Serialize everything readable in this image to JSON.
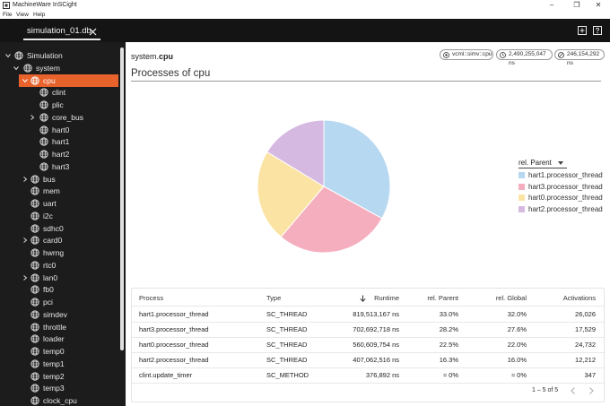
{
  "window": {
    "title": "MachineWare InSCight",
    "menu": [
      "File",
      "View",
      "Help"
    ],
    "controls": {
      "minimize": "–",
      "maximize": "❐",
      "close": "✕"
    }
  },
  "tabs": [
    {
      "label": "simulation_01.db",
      "active": true
    }
  ],
  "toolbar": {
    "icons": [
      "new-window-icon",
      "help-icon"
    ]
  },
  "sidebar": {
    "items": [
      {
        "label": "Simulation",
        "depth": 0,
        "expandable": true,
        "expanded": true
      },
      {
        "label": "system",
        "depth": 1,
        "expandable": true,
        "expanded": true
      },
      {
        "label": "cpu",
        "depth": 2,
        "expandable": true,
        "expanded": true,
        "selected": true
      },
      {
        "label": "clint",
        "depth": 3,
        "expandable": false
      },
      {
        "label": "plic",
        "depth": 3,
        "expandable": false
      },
      {
        "label": "core_bus",
        "depth": 3,
        "expandable": true,
        "expanded": false
      },
      {
        "label": "hart0",
        "depth": 3,
        "expandable": false
      },
      {
        "label": "hart1",
        "depth": 3,
        "expandable": false
      },
      {
        "label": "hart2",
        "depth": 3,
        "expandable": false
      },
      {
        "label": "hart3",
        "depth": 3,
        "expandable": false
      },
      {
        "label": "bus",
        "depth": 2,
        "expandable": true,
        "expanded": false
      },
      {
        "label": "mem",
        "depth": 2,
        "expandable": false
      },
      {
        "label": "uart",
        "depth": 2,
        "expandable": false
      },
      {
        "label": "i2c",
        "depth": 2,
        "expandable": false
      },
      {
        "label": "sdhc0",
        "depth": 2,
        "expandable": false
      },
      {
        "label": "card0",
        "depth": 2,
        "expandable": true,
        "expanded": false
      },
      {
        "label": "hwrng",
        "depth": 2,
        "expandable": false
      },
      {
        "label": "rtc0",
        "depth": 2,
        "expandable": false
      },
      {
        "label": "lan0",
        "depth": 2,
        "expandable": true,
        "expanded": false
      },
      {
        "label": "fb0",
        "depth": 2,
        "expandable": false
      },
      {
        "label": "pci",
        "depth": 2,
        "expandable": false
      },
      {
        "label": "simdev",
        "depth": 2,
        "expandable": false
      },
      {
        "label": "throttle",
        "depth": 2,
        "expandable": false
      },
      {
        "label": "loader",
        "depth": 2,
        "expandable": false
      },
      {
        "label": "temp0",
        "depth": 2,
        "expandable": false
      },
      {
        "label": "temp1",
        "depth": 2,
        "expandable": false
      },
      {
        "label": "temp2",
        "depth": 2,
        "expandable": false
      },
      {
        "label": "temp3",
        "depth": 2,
        "expandable": false
      },
      {
        "label": "clock_cpu",
        "depth": 2,
        "expandable": false
      }
    ]
  },
  "header": {
    "breadcrumb_prefix": "system.",
    "breadcrumb_current": "cpu",
    "chips": [
      {
        "icon": "chip-target-icon",
        "label": "vcml::simv::cpu"
      },
      {
        "icon": "clock-icon",
        "label": "2,490,255,047 ns"
      },
      {
        "icon": "timer-icon",
        "label": "246,154,292 ns"
      }
    ]
  },
  "section": {
    "title": "Processes of cpu"
  },
  "chart_data": {
    "type": "pie",
    "legend_title": "rel. Parent",
    "legend_position": "right",
    "labels": [
      "hart1.processor_thread",
      "hart3.processor_thread",
      "hart0.processor_thread",
      "hart2.processor_thread"
    ],
    "values": [
      33.0,
      28.2,
      22.5,
      16.3
    ],
    "colors": [
      "#b6d8f1",
      "#f5aebd",
      "#fbe4a3",
      "#d5b9e1"
    ]
  },
  "table": {
    "columns": [
      "Process",
      "Type",
      "Runtime",
      "rel. Parent",
      "rel. Global",
      "Activations"
    ],
    "sorted_column": "Runtime",
    "rows": [
      [
        "hart1.processor_thread",
        "SC_THREAD",
        "819,513,167 ns",
        "33.0%",
        "32.0%",
        "26,026"
      ],
      [
        "hart3.processor_thread",
        "SC_THREAD",
        "702,692,718 ns",
        "28.2%",
        "27.6%",
        "17,529"
      ],
      [
        "hart0.processor_thread",
        "SC_THREAD",
        "560,609,754 ns",
        "22.5%",
        "22.0%",
        "24,732"
      ],
      [
        "hart2.processor_thread",
        "SC_THREAD",
        "407,062,516 ns",
        "16.3%",
        "16.0%",
        "12,212"
      ],
      [
        "clint.update_timer",
        "SC_METHOD",
        "376,892 ns",
        "≈ 0%",
        "≈ 0%",
        "347"
      ]
    ],
    "pagination": "1 – 5 of 5"
  },
  "colors": {
    "accent": "#e8622c",
    "sidebar_bg": "#1c1c1c",
    "tabstrip_bg": "#141414"
  }
}
